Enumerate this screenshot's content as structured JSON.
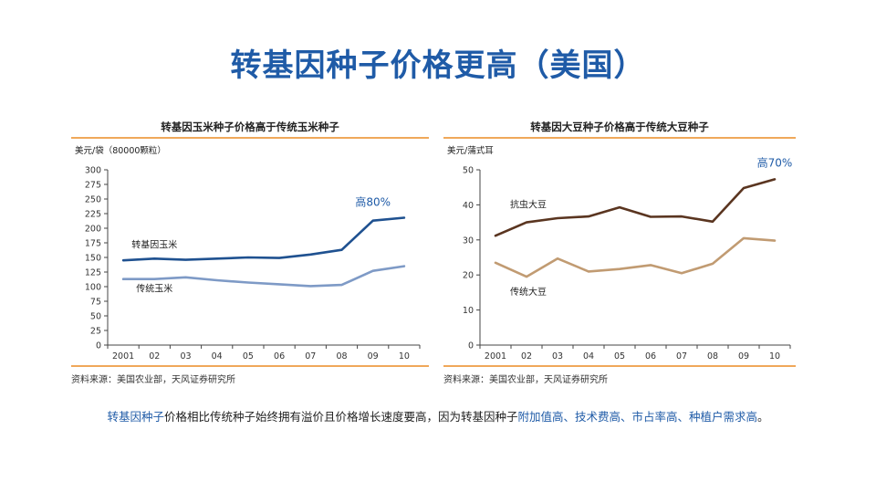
{
  "title": "转基因种子价格更高（美国）",
  "chart_data": [
    {
      "type": "line",
      "title": "转基因玉米种子价格高于传统玉米种子",
      "ylabel": "美元/袋（80000颗粒）",
      "ylim": [
        0,
        300
      ],
      "yticks": [
        0,
        25,
        50,
        75,
        100,
        125,
        150,
        175,
        200,
        225,
        250,
        275,
        300
      ],
      "categories": [
        "2001",
        "02",
        "03",
        "04",
        "05",
        "06",
        "07",
        "08",
        "09",
        "10"
      ],
      "series": [
        {
          "name": "转基因玉米",
          "color": "#1f5190",
          "values": [
            145,
            148,
            146,
            148,
            150,
            149,
            155,
            163,
            213,
            218
          ]
        },
        {
          "name": "传统玉米",
          "color": "#7e9ac6",
          "values": [
            113,
            113,
            116,
            111,
            107,
            104,
            101,
            103,
            127,
            135
          ]
        }
      ],
      "annotation": "高80%",
      "source": "资料来源：美国农业部，天风证券研究所"
    },
    {
      "type": "line",
      "title": "转基因大豆种子价格高于传统大豆种子",
      "ylabel": "美元/蒲式耳",
      "ylim": [
        0,
        50
      ],
      "yticks": [
        0,
        10,
        20,
        30,
        40,
        50
      ],
      "categories": [
        "2001",
        "02",
        "03",
        "04",
        "05",
        "06",
        "07",
        "08",
        "09",
        "10"
      ],
      "series": [
        {
          "name": "抗虫大豆",
          "color": "#5a3520",
          "values": [
            31.2,
            35,
            36.2,
            36.7,
            39.3,
            36.6,
            36.7,
            35.2,
            44.8,
            47.3
          ]
        },
        {
          "name": "传统大豆",
          "color": "#c19b72",
          "values": [
            23.5,
            19.5,
            24.7,
            21,
            21.7,
            22.8,
            20.5,
            23.2,
            30.5,
            29.8
          ]
        }
      ],
      "annotation": "高70%",
      "source": "资料来源：美国农业部，天风证券研究所"
    }
  ],
  "caption": {
    "part1": "转基因种子",
    "part2": "价格相比传统种子始终拥有溢价且价格增长速度要高，因为转基因种子",
    "part3": "附加值高、技术费高、市占率高、种植户需求高",
    "part4": "。"
  }
}
